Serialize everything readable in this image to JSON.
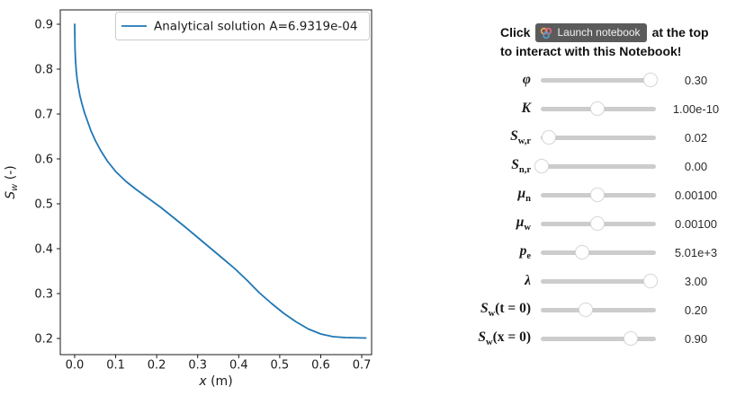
{
  "instruction": {
    "prefix": "Click",
    "badge_label": "Launch notebook",
    "suffix": "at the top",
    "line2": "to interact with this Notebook!"
  },
  "colors": {
    "line": "#1f77b4",
    "axis": "#1a1a1a",
    "legend_border": "#cccccc",
    "badge_bg": "#5b5b5b",
    "badge_text": "#f2f2f2",
    "binder_orange": "#F5A252",
    "binder_red": "#E66581",
    "binder_blue": "#579ACA",
    "slider_track": "#cccccc",
    "slider_handle": "#ffffff"
  },
  "sliders": [
    {
      "name": "phi",
      "label": {
        "base": "φ",
        "sub": "",
        "suffix": ""
      },
      "value": "0.30",
      "handle_pos": 0.95
    },
    {
      "name": "K",
      "label": {
        "base": "K",
        "sub": "",
        "suffix": ""
      },
      "value": "1.00e-10",
      "handle_pos": 0.49
    },
    {
      "name": "Swr",
      "label": {
        "base": "S",
        "sub": "w,r",
        "suffix": ""
      },
      "value": "0.02",
      "handle_pos": 0.07
    },
    {
      "name": "Snr",
      "label": {
        "base": "S",
        "sub": "n,r",
        "suffix": ""
      },
      "value": "0.00",
      "handle_pos": 0.01
    },
    {
      "name": "mu-n",
      "label": {
        "base": "μ",
        "sub": "n",
        "suffix": ""
      },
      "value": "0.00100",
      "handle_pos": 0.49
    },
    {
      "name": "mu-w",
      "label": {
        "base": "μ",
        "sub": "w",
        "suffix": ""
      },
      "value": "0.00100",
      "handle_pos": 0.49
    },
    {
      "name": "pe",
      "label": {
        "base": "p",
        "sub": "e",
        "suffix": ""
      },
      "value": "5.01e+3",
      "handle_pos": 0.36
    },
    {
      "name": "lambda",
      "label": {
        "base": "λ",
        "sub": "",
        "suffix": ""
      },
      "value": "3.00",
      "handle_pos": 0.95
    },
    {
      "name": "Sw-t0",
      "label": {
        "base": "S",
        "sub": "w",
        "suffix": "(t = 0)"
      },
      "value": "0.20",
      "handle_pos": 0.39
    },
    {
      "name": "Sw-x0",
      "label": {
        "base": "S",
        "sub": "w",
        "suffix": "(x = 0)"
      },
      "value": "0.90",
      "handle_pos": 0.78
    }
  ],
  "chart_data": {
    "type": "line",
    "title": "",
    "xlabel": {
      "base": "x",
      "suffix": " (m)"
    },
    "ylabel": {
      "base": "S",
      "sub": "w",
      "suffix": " (-)"
    },
    "xlim": [
      -0.035,
      0.724
    ],
    "ylim": [
      0.164,
      0.932
    ],
    "xticks": [
      0.0,
      0.1,
      0.2,
      0.3,
      0.4,
      0.5,
      0.6,
      0.7
    ],
    "yticks": [
      0.2,
      0.3,
      0.4,
      0.5,
      0.6,
      0.7,
      0.8,
      0.9
    ],
    "grid": false,
    "legend": {
      "label": "Analytical solution A=6.9319e-04",
      "position": "upper right"
    },
    "line_color": "#1f77b4",
    "series": [
      {
        "name": "Analytical solution A=6.9319e-04",
        "x": [
          0.0,
          0.0005,
          0.001,
          0.002,
          0.004,
          0.006,
          0.009,
          0.013,
          0.018,
          0.024,
          0.031,
          0.04,
          0.051,
          0.064,
          0.08,
          0.1,
          0.125,
          0.15,
          0.18,
          0.21,
          0.24,
          0.27,
          0.3,
          0.33,
          0.36,
          0.39,
          0.42,
          0.45,
          0.48,
          0.51,
          0.54,
          0.57,
          0.6,
          0.63,
          0.66,
          0.71
        ],
        "y": [
          0.9,
          0.87,
          0.845,
          0.82,
          0.795,
          0.778,
          0.76,
          0.74,
          0.722,
          0.703,
          0.685,
          0.662,
          0.64,
          0.618,
          0.595,
          0.572,
          0.55,
          0.532,
          0.512,
          0.492,
          0.47,
          0.448,
          0.425,
          0.402,
          0.379,
          0.356,
          0.33,
          0.302,
          0.278,
          0.256,
          0.237,
          0.221,
          0.21,
          0.204,
          0.202,
          0.201
        ]
      }
    ]
  }
}
